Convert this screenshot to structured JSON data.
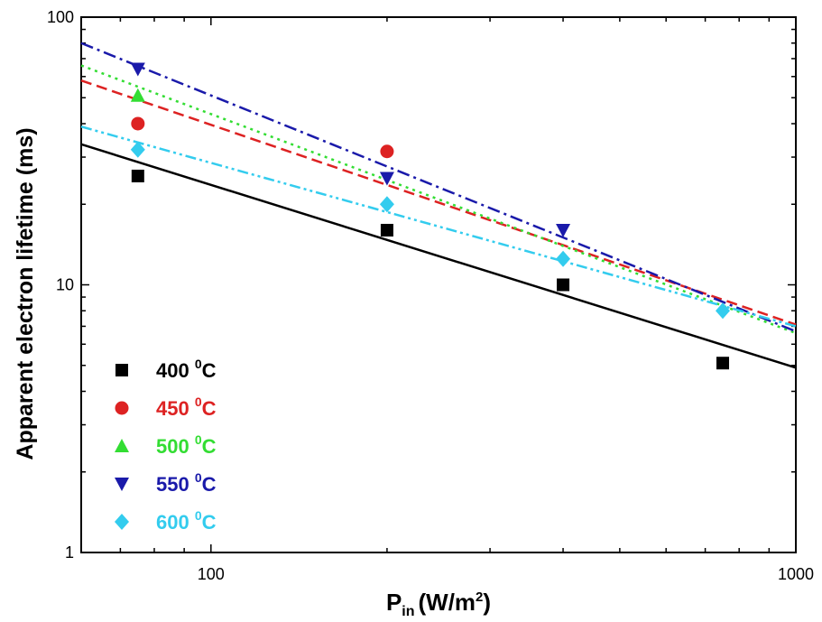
{
  "chart_data": {
    "type": "scatter",
    "title": "",
    "xlabel": {
      "main": "P",
      "sub": "in",
      "unit": "(W/m",
      "sup": "2",
      "close": ")"
    },
    "ylabel": "Apparent electron lifetime (ms)",
    "xscale": "log",
    "yscale": "log",
    "xlim": [
      60,
      1000
    ],
    "ylim": [
      1,
      100
    ],
    "x_ticks": [
      100,
      1000
    ],
    "y_ticks": [
      1,
      10,
      100
    ],
    "x_tick_labels": [
      "100",
      "1000"
    ],
    "y_tick_labels": [
      "1",
      "10",
      "100"
    ],
    "grid": false,
    "legend_position": "bottom-left",
    "series": [
      {
        "label": "400",
        "unit": "C",
        "sup": "0",
        "marker": "square",
        "color": "#000000",
        "line_style": "solid",
        "x": [
          75,
          200,
          400,
          750
        ],
        "y": [
          25.5,
          16,
          10,
          5.1
        ],
        "fit": [
          [
            60,
            33.5
          ],
          [
            1000,
            4.9
          ]
        ]
      },
      {
        "label": "450",
        "unit": "C",
        "sup": "0",
        "marker": "circle",
        "color": "#dd2222",
        "line_style": "dashed",
        "x": [
          75,
          200
        ],
        "y": [
          40,
          31.5
        ],
        "fit": [
          [
            60,
            58
          ],
          [
            1000,
            7.1
          ]
        ]
      },
      {
        "label": "500",
        "unit": "C",
        "sup": "0",
        "marker": "triangle-up",
        "color": "#33dd33",
        "line_style": "dotted",
        "x": [
          75
        ],
        "y": [
          51
        ],
        "fit": [
          [
            60,
            66
          ],
          [
            1000,
            6.6
          ]
        ]
      },
      {
        "label": "550",
        "unit": "C",
        "sup": "0",
        "marker": "triangle-down",
        "color": "#1a1aaa",
        "line_style": "dash-dot",
        "x": [
          75,
          200,
          400
        ],
        "y": [
          64,
          25,
          16
        ],
        "fit": [
          [
            60,
            80
          ],
          [
            1000,
            6.7
          ]
        ]
      },
      {
        "label": "600",
        "unit": "C",
        "sup": "0",
        "marker": "diamond",
        "color": "#33ccee",
        "line_style": "dash-dot-dot",
        "x": [
          75,
          200,
          400,
          750
        ],
        "y": [
          32,
          20,
          12.5,
          8
        ],
        "fit": [
          [
            60,
            39
          ],
          [
            1000,
            7.0
          ]
        ]
      }
    ]
  }
}
